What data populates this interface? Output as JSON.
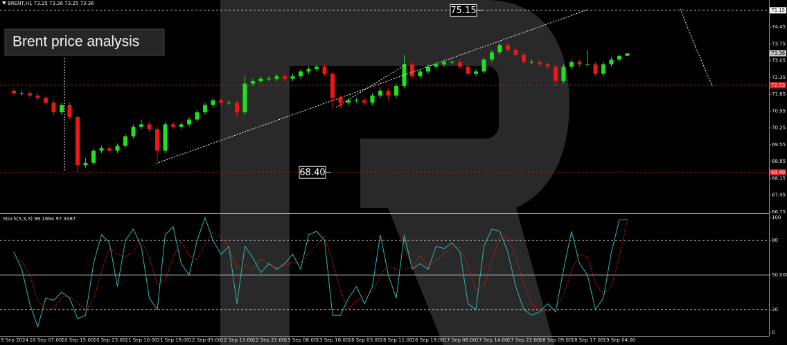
{
  "chart_data": [
    {
      "type": "candlestick",
      "title": "BRENT,H1 73.25 73.36 73.25 73.36",
      "subtitle": "Brent price analysis",
      "categories": [
        "9 Sep 2024",
        null,
        null,
        null,
        "10 Sep 07:00",
        null,
        null,
        null,
        "10 Sep 15:00",
        null,
        null,
        null,
        "10 Sep 23:00",
        null,
        null,
        null,
        "11 Sep 10:00",
        null,
        null,
        null,
        "11 Sep 18:00",
        null,
        null,
        null,
        "12 Sep 05:00",
        null,
        null,
        null,
        "12 Sep 13:00",
        null,
        null,
        null,
        "12 Sep 21:00",
        null,
        null,
        null,
        "13 Sep 08:00",
        null,
        null,
        null,
        "13 Sep 16:00",
        null,
        null,
        null,
        "16 Sep 03:00",
        null,
        null,
        null,
        "16 Sep 11:00",
        null,
        null,
        null,
        "16 Sep 19:00",
        null,
        null,
        null,
        "17 Sep 06:00",
        null,
        null,
        null,
        "17 Sep 14:00",
        null,
        null,
        null,
        "17 Sep 22:00",
        null,
        null,
        null,
        "18 Sep 09:00",
        null,
        null,
        null,
        "18 Sep 17:00",
        null,
        null,
        null,
        "19 Sep 04:00",
        null
      ],
      "open": [
        71.8,
        71.7,
        71.7,
        71.6,
        71.5,
        71.3,
        70.9,
        71.2,
        70.7,
        68.7,
        68.8,
        69.3,
        69.4,
        69.3,
        69.5,
        69.9,
        70.3,
        70.4,
        70.2,
        69.3,
        70.4,
        70.3,
        70.4,
        70.6,
        70.9,
        71.2,
        71.4,
        71.3,
        71.3,
        70.9,
        72.1,
        72.2,
        72.3,
        72.3,
        72.4,
        72.3,
        72.4,
        72.6,
        72.7,
        72.8,
        72.5,
        71.5,
        71.3,
        71.4,
        71.4,
        71.3,
        71.6,
        71.8,
        71.6,
        72.0,
        72.9,
        72.4,
        72.6,
        72.8,
        72.9,
        73.0,
        73.0,
        72.8,
        72.5,
        72.6,
        73.1,
        73.4,
        73.7,
        73.5,
        73.3,
        73.0,
        73.0,
        72.9,
        72.8,
        72.2,
        72.8,
        73.0,
        72.9,
        72.9,
        72.5,
        72.9,
        73.1,
        73.25
      ],
      "high": [
        71.9,
        71.8,
        71.8,
        71.7,
        71.6,
        71.4,
        71.3,
        71.3,
        70.8,
        69.0,
        69.4,
        69.5,
        69.5,
        69.6,
        70.0,
        70.4,
        70.6,
        70.5,
        70.3,
        70.5,
        70.5,
        70.5,
        70.7,
        71.0,
        71.3,
        71.5,
        71.5,
        71.4,
        71.4,
        72.4,
        72.3,
        72.4,
        72.4,
        72.5,
        72.5,
        72.5,
        72.7,
        72.8,
        72.9,
        72.9,
        72.6,
        71.6,
        71.5,
        71.5,
        71.5,
        71.7,
        71.9,
        71.9,
        72.1,
        73.3,
        73.0,
        72.7,
        72.9,
        73.0,
        73.1,
        73.1,
        73.1,
        72.9,
        72.7,
        73.2,
        73.5,
        73.8,
        73.8,
        73.6,
        73.4,
        73.1,
        73.1,
        73.0,
        72.9,
        72.9,
        73.1,
        73.1,
        73.5,
        73.0,
        73.0,
        73.2,
        73.3,
        73.36
      ],
      "low": [
        71.6,
        71.6,
        71.5,
        71.4,
        71.2,
        70.8,
        70.8,
        70.6,
        68.4,
        68.6,
        68.7,
        69.2,
        69.2,
        69.2,
        69.4,
        69.8,
        70.2,
        70.1,
        68.85,
        69.2,
        70.2,
        70.2,
        70.3,
        70.5,
        70.8,
        71.1,
        71.2,
        71.2,
        70.7,
        70.8,
        72.0,
        72.1,
        72.2,
        72.2,
        72.2,
        72.2,
        72.3,
        72.5,
        72.6,
        72.4,
        71.1,
        71.1,
        71.2,
        71.3,
        71.2,
        71.2,
        71.5,
        71.4,
        71.5,
        71.9,
        72.3,
        72.3,
        72.5,
        72.7,
        72.8,
        72.9,
        72.7,
        72.4,
        72.4,
        72.5,
        73.0,
        73.3,
        73.4,
        73.2,
        72.9,
        72.9,
        72.8,
        72.7,
        72.0,
        72.1,
        72.7,
        72.8,
        72.8,
        72.4,
        72.4,
        72.8,
        73.0,
        73.25
      ],
      "close": [
        71.7,
        71.7,
        71.6,
        71.5,
        71.3,
        70.9,
        71.2,
        70.7,
        68.7,
        68.8,
        69.3,
        69.4,
        69.3,
        69.5,
        69.9,
        70.3,
        70.4,
        70.2,
        69.3,
        70.4,
        70.3,
        70.4,
        70.6,
        70.9,
        71.2,
        71.4,
        71.3,
        71.3,
        70.9,
        72.1,
        72.2,
        72.3,
        72.3,
        72.4,
        72.3,
        72.4,
        72.6,
        72.7,
        72.8,
        72.5,
        71.5,
        71.3,
        71.4,
        71.4,
        71.3,
        71.6,
        71.8,
        71.6,
        72.0,
        72.9,
        72.4,
        72.6,
        72.8,
        72.9,
        73.0,
        73.0,
        72.8,
        72.5,
        72.6,
        73.1,
        73.4,
        73.7,
        73.5,
        73.3,
        73.0,
        73.0,
        72.9,
        72.8,
        72.2,
        72.8,
        73.0,
        72.9,
        72.9,
        72.5,
        72.9,
        73.1,
        73.25,
        73.36
      ],
      "up_color": "#1fe01f",
      "down_color": "#f01414",
      "ylim": [
        66.69,
        75.58
      ],
      "yticks": [
        74.45,
        73.75,
        73.05,
        72.35,
        71.65,
        70.95,
        70.25,
        69.55,
        68.85,
        68.15,
        67.45,
        66.75
      ],
      "levels": [
        {
          "value": 75.15,
          "color": "#ffffff"
        },
        {
          "value": 72.03,
          "color": "#e81c1c"
        },
        {
          "value": 68.4,
          "label": "68.40",
          "color": "#e81c1c"
        }
      ],
      "last_price": {
        "value": 73.36,
        "color": "#c8c8c8"
      },
      "annotations": [
        {
          "value": 75.15
        },
        {
          "value": 68.4,
          "label": "68.40"
        }
      ]
    },
    {
      "type": "line",
      "title": "Stoch(5,3,3) 98.1884 97.3487",
      "series": [
        {
          "color": "#35b8b0",
          "style": "solid",
          "values": [
            70,
            55,
            25,
            5,
            30,
            28,
            35,
            30,
            12,
            15,
            60,
            85,
            78,
            40,
            80,
            90,
            75,
            30,
            20,
            85,
            92,
            60,
            50,
            80,
            100,
            80,
            68,
            75,
            25,
            75,
            65,
            52,
            60,
            55,
            60,
            68,
            55,
            85,
            88,
            80,
            15,
            15,
            30,
            40,
            25,
            40,
            85,
            50,
            30,
            85,
            55,
            60,
            55,
            75,
            73,
            78,
            70,
            25,
            20,
            75,
            90,
            88,
            70,
            40,
            20,
            15,
            18,
            25,
            18,
            55,
            88,
            60,
            50,
            20,
            30,
            70,
            98,
            98.19
          ]
        },
        {
          "color": "#e0211d",
          "style": "dotted",
          "values": [
            65,
            62,
            50,
            28,
            20,
            21,
            31,
            31,
            26,
            19,
            29,
            53,
            74,
            68,
            66,
            70,
            82,
            65,
            42,
            45,
            66,
            79,
            67,
            63,
            77,
            87,
            83,
            74,
            56,
            58,
            55,
            64,
            59,
            56,
            58,
            61,
            61,
            69,
            76,
            84,
            61,
            37,
            20,
            28,
            32,
            35,
            50,
            58,
            55,
            55,
            57,
            67,
            57,
            63,
            68,
            75,
            74,
            58,
            38,
            40,
            62,
            84,
            83,
            66,
            43,
            25,
            18,
            19,
            20,
            33,
            54,
            68,
            66,
            43,
            33,
            40,
            66,
            97.35
          ]
        }
      ],
      "ylim": [
        -3,
        102.4
      ],
      "yticks": [
        100,
        80,
        {
          "value": 50,
          "label": "50.000"
        },
        20,
        0
      ],
      "level_lines": [
        {
          "value": 80,
          "style": "dashed"
        },
        {
          "value": 50,
          "style": "solid"
        },
        {
          "value": 20,
          "style": "dashed"
        }
      ]
    }
  ]
}
